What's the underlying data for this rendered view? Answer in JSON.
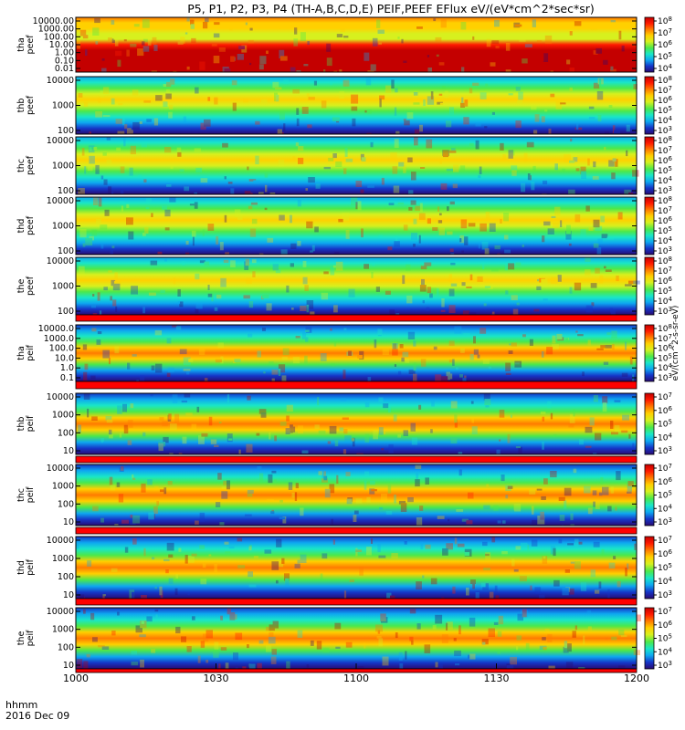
{
  "title": "P5, P1, P2, P3, P4 (TH-A,B,C,D,E) PEIF,PEEF EFlux eV/(eV*cm^2*sec*sr)",
  "x_axis": {
    "label_line1": "hhmm",
    "label_line2": "2016 Dec 09",
    "ticks": [
      "1000",
      "1030",
      "1100",
      "1130",
      "1200"
    ]
  },
  "colorbar_label": "eV/(cm^2-s-sr-eV)",
  "colors": {
    "palette": [
      "#2a0a72",
      "#1536c8",
      "#0ea7f0",
      "#19e6c8",
      "#4be84b",
      "#d7f01e",
      "#ffd000",
      "#ff7a00",
      "#ff1a00",
      "#c40000"
    ],
    "fill_band": "#ff0000"
  },
  "chart_data": [
    {
      "type": "heatmap",
      "panel": "tha-peef",
      "ylabel": [
        "tha",
        "peef"
      ],
      "yscale": "log",
      "yticks": [
        "10000.00",
        "1000.00",
        "100.00",
        "10.00",
        "1.00",
        "0.10",
        "0.01"
      ],
      "cbar_ticks": [
        "10^8",
        "10^7",
        "10^6",
        "10^5",
        "10^4"
      ],
      "xrange": [
        "1000",
        "1200"
      ]
    },
    {
      "type": "heatmap",
      "panel": "thb-peef",
      "ylabel": [
        "thb",
        "peef"
      ],
      "yscale": "log",
      "yticks": [
        "10000",
        "1000",
        "100"
      ],
      "cbar_ticks": [
        "10^8",
        "10^7",
        "10^6",
        "10^5",
        "10^4",
        "10^3"
      ],
      "xrange": [
        "1000",
        "1200"
      ]
    },
    {
      "type": "heatmap",
      "panel": "thc-peef",
      "ylabel": [
        "thc",
        "peef"
      ],
      "yscale": "log",
      "yticks": [
        "10000",
        "1000",
        "100"
      ],
      "cbar_ticks": [
        "10^8",
        "10^7",
        "10^6",
        "10^5",
        "10^4",
        "10^3"
      ],
      "xrange": [
        "1000",
        "1200"
      ]
    },
    {
      "type": "heatmap",
      "panel": "thd-peef",
      "ylabel": [
        "thd",
        "peef"
      ],
      "yscale": "log",
      "yticks": [
        "10000",
        "1000",
        "100"
      ],
      "cbar_ticks": [
        "10^8",
        "10^7",
        "10^6",
        "10^5",
        "10^4",
        "10^3"
      ],
      "xrange": [
        "1000",
        "1200"
      ]
    },
    {
      "type": "heatmap",
      "panel": "the-peef",
      "ylabel": [
        "the",
        "peef"
      ],
      "yscale": "log",
      "yticks": [
        "10000",
        "1000",
        "100"
      ],
      "cbar_ticks": [
        "10^8",
        "10^7",
        "10^6",
        "10^5",
        "10^4",
        "10^3"
      ],
      "xrange": [
        "1000",
        "1200"
      ]
    },
    {
      "type": "heatmap",
      "panel": "tha-peif",
      "ylabel": [
        "tha",
        "peif"
      ],
      "yscale": "log",
      "yticks": [
        "10000.0",
        "1000.0",
        "100.0",
        "10.0",
        "1.0",
        "0.1"
      ],
      "cbar_ticks": [
        "10^8",
        "10^7",
        "10^6",
        "10^5",
        "10^4",
        "10^3"
      ],
      "xrange": [
        "1000",
        "1200"
      ]
    },
    {
      "type": "heatmap",
      "panel": "thb-peif",
      "ylabel": [
        "thb",
        "peif"
      ],
      "yscale": "log",
      "yticks": [
        "10000",
        "1000",
        "100",
        "10"
      ],
      "cbar_ticks": [
        "10^7",
        "10^6",
        "10^5",
        "10^4",
        "10^3"
      ],
      "xrange": [
        "1000",
        "1200"
      ]
    },
    {
      "type": "heatmap",
      "panel": "thc-peif",
      "ylabel": [
        "thc",
        "peif"
      ],
      "yscale": "log",
      "yticks": [
        "10000",
        "1000",
        "100",
        "10"
      ],
      "cbar_ticks": [
        "10^7",
        "10^6",
        "10^5",
        "10^4",
        "10^3"
      ],
      "xrange": [
        "1000",
        "1200"
      ]
    },
    {
      "type": "heatmap",
      "panel": "thd-peif",
      "ylabel": [
        "thd",
        "peif"
      ],
      "yscale": "log",
      "yticks": [
        "10000",
        "1000",
        "100",
        "10"
      ],
      "cbar_ticks": [
        "10^7",
        "10^6",
        "10^5",
        "10^4",
        "10^3"
      ],
      "xrange": [
        "1000",
        "1200"
      ]
    },
    {
      "type": "heatmap",
      "panel": "the-peif",
      "ylabel": [
        "the",
        "peif"
      ],
      "yscale": "log",
      "yticks": [
        "10000",
        "1000",
        "100",
        "10"
      ],
      "cbar_ticks": [
        "10^7",
        "10^6",
        "10^5",
        "10^4",
        "10^3"
      ],
      "xrange": [
        "1000",
        "1200"
      ]
    }
  ]
}
